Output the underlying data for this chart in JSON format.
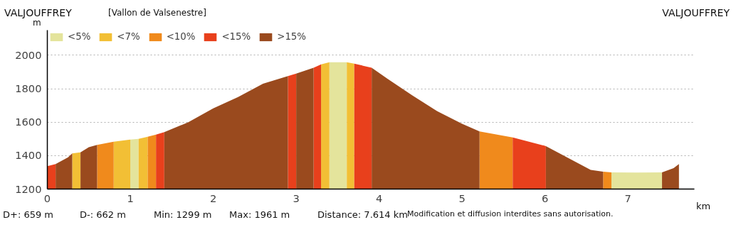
{
  "chart_data": {
    "type": "area",
    "title": "VALJOUFFREY",
    "subtitle": "[Vallon de Valsenestre]",
    "ylabel": "m",
    "xlabel": "km",
    "annotations": [
      "VALJOUFFREY",
      "D+: 659 m",
      "D-: 662 m",
      "Min: 1299 m",
      "Max: 1961 m",
      "Distance: 7.614 km",
      "Modification et diffusion interdites sans autorisation."
    ],
    "xlim": [
      0,
      7.8
    ],
    "xticks": [
      0,
      1,
      2,
      3,
      4,
      5,
      6,
      7
    ],
    "ylim": [
      1200,
      2150
    ],
    "yticks": [
      1200,
      1400,
      1600,
      1800,
      2000
    ],
    "grid": "y",
    "legend": "top left",
    "series": [
      {
        "name": "<5%",
        "color": "#e4e49c",
        "x": [
          1.0,
          1.1,
          null,
          3.4,
          3.61,
          null,
          6.8,
          7.1,
          7.41
        ],
        "values": [
          1496,
          1500,
          null,
          1958,
          1958,
          null,
          1300,
          1299,
          1300
        ]
      },
      {
        "name": "<7%",
        "color": "#f2bf35",
        "x": [
          0.3,
          0.4,
          null,
          0.8,
          1.0,
          null,
          1.1,
          1.21,
          null,
          3.3,
          3.4,
          null,
          3.61,
          3.7
        ],
        "values": [
          1413,
          1420,
          null,
          1483,
          1496,
          null,
          1500,
          1513,
          null,
          1945,
          1958,
          null,
          1958,
          1950
        ]
      },
      {
        "name": "<10%",
        "color": "#f08a1c",
        "x": [
          0.6,
          0.8,
          null,
          1.21,
          1.31,
          null,
          5.21,
          5.61,
          null,
          6.7,
          6.8
        ],
        "values": [
          1464,
          1483,
          null,
          1513,
          1526,
          null,
          1545,
          1509,
          null,
          1304,
          1300
        ]
      },
      {
        "name": "<15%",
        "color": "#e8401c",
        "x": [
          0.0,
          0.1,
          null,
          1.31,
          1.41,
          null,
          2.9,
          3.0,
          null,
          3.21,
          3.3,
          null,
          3.7,
          3.91,
          null,
          5.61,
          6.01
        ],
        "values": [
          1337,
          1350,
          null,
          1526,
          1540,
          null,
          1875,
          1890,
          null,
          1925,
          1945,
          null,
          1950,
          1925,
          null,
          1509,
          1457
        ]
      },
      {
        "name": ">15%",
        "color": "#9a4a1e",
        "x": [
          0.1,
          0.25,
          0.3,
          null,
          0.4,
          0.5,
          0.6,
          null,
          1.41,
          1.7,
          2.0,
          2.3,
          2.6,
          2.9,
          null,
          3.0,
          3.21,
          null,
          3.91,
          4.1,
          4.4,
          4.7,
          5.0,
          5.21,
          null,
          6.01,
          6.3,
          6.55,
          6.7,
          null,
          7.41,
          7.55,
          7.614
        ],
        "values": [
          1350,
          1390,
          1413,
          null,
          1420,
          1450,
          1464,
          null,
          1540,
          1600,
          1682,
          1750,
          1830,
          1875,
          null,
          1890,
          1925,
          null,
          1925,
          1860,
          1760,
          1665,
          1590,
          1545,
          null,
          1457,
          1380,
          1315,
          1304,
          null,
          1300,
          1325,
          1350
        ]
      }
    ]
  }
}
